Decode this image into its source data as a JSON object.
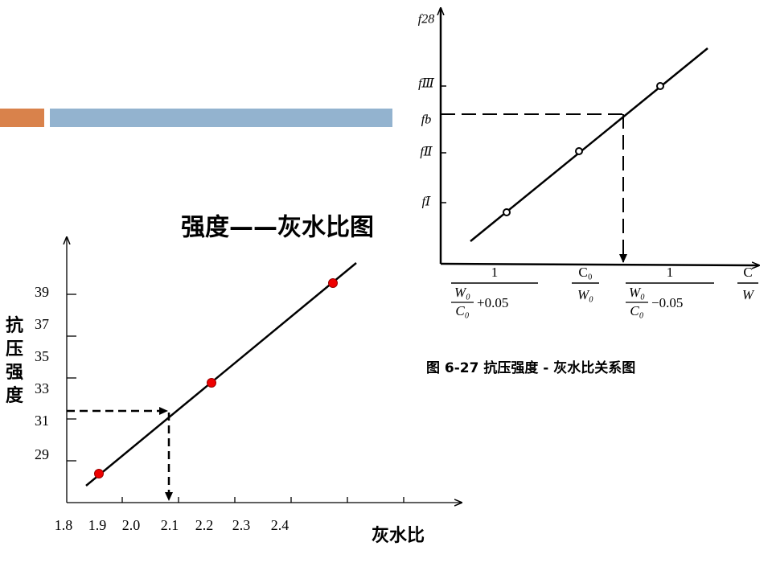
{
  "title": "强度——灰水比图",
  "left_chart": {
    "y_axis_title": "抗压强度",
    "x_axis_title": "灰水比",
    "y_labels": [
      "39",
      "37",
      "35",
      "33",
      "31",
      "29"
    ],
    "x_labels": [
      "1.8",
      "1.9",
      "2.0",
      "2.1",
      "2.2",
      "2.3",
      "2.4"
    ]
  },
  "figure": {
    "y_labels": [
      "f28",
      "fⅢ",
      "fb",
      "fⅡ",
      "fⅠ"
    ],
    "x_labels": [
      {
        "num": "1",
        "den_top": "W₀",
        "den_bottom": "C₀",
        "den_suffix": "+0.05"
      },
      {
        "num": "C₀",
        "den": "W₀"
      },
      {
        "num": "1",
        "den_top": "W₀",
        "den_bottom": "C₀",
        "den_suffix": "−0.05"
      },
      {
        "num": "C",
        "den": "W"
      }
    ],
    "caption": "图 6-27   抗压强度 - 灰水比关系图"
  }
}
